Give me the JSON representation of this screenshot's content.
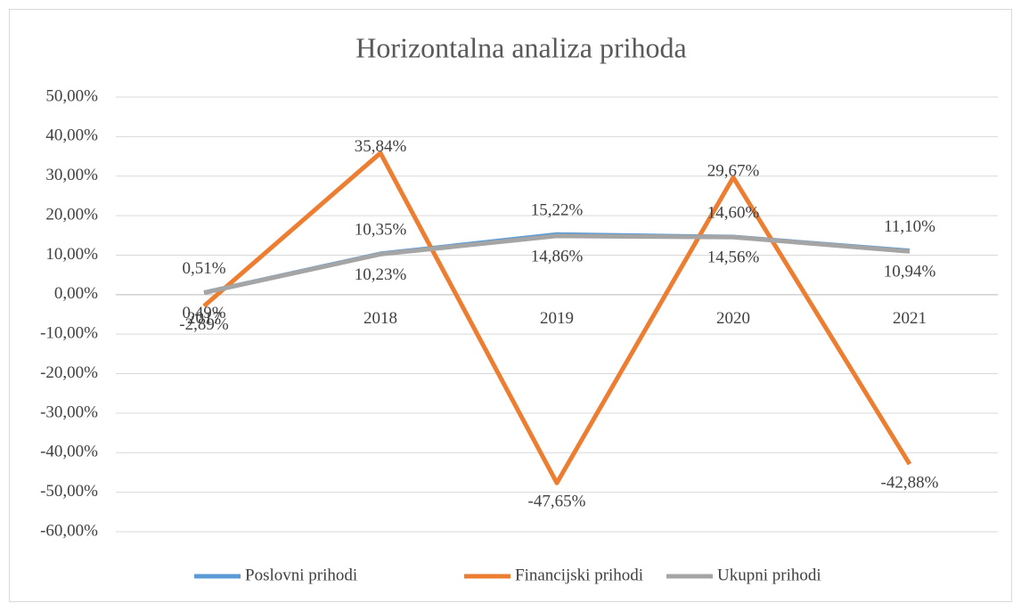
{
  "chart_data": {
    "type": "line",
    "title": "Horizontalna analiza prihoda",
    "categories": [
      "2017",
      "2018",
      "2019",
      "2020",
      "2021"
    ],
    "series": [
      {
        "name": "Poslovni prihodi",
        "color": "#5b9bd5",
        "values": [
          0.51,
          10.35,
          15.22,
          14.6,
          11.1
        ],
        "value_labels": [
          "0,51%",
          "10,35%",
          "15,22%",
          "14,60%",
          "11,10%"
        ]
      },
      {
        "name": "Financijski prihodi",
        "color": "#ed7d31",
        "values": [
          -2.89,
          35.84,
          -47.65,
          29.67,
          -42.88
        ],
        "value_labels": [
          "-2,89%",
          "35,84%",
          "-47,65%",
          "29,67%",
          "-42,88%"
        ]
      },
      {
        "name": "Ukupni prihodi",
        "color": "#a5a5a5",
        "values": [
          0.49,
          10.23,
          14.86,
          14.56,
          10.94
        ],
        "value_labels": [
          "0,49%",
          "10,23%",
          "14,86%",
          "14,56%",
          "10,94%"
        ]
      }
    ],
    "ylim": [
      -60,
      50
    ],
    "yticks": [
      {
        "value": -60,
        "label": "-60,00%"
      },
      {
        "value": -50,
        "label": "-50,00%"
      },
      {
        "value": -40,
        "label": "-40,00%"
      },
      {
        "value": -30,
        "label": "-30,00%"
      },
      {
        "value": -20,
        "label": "-20,00%"
      },
      {
        "value": -10,
        "label": "-10,00%"
      },
      {
        "value": 0,
        "label": "0,00%"
      },
      {
        "value": 10,
        "label": "10,00%"
      },
      {
        "value": 20,
        "label": "20,00%"
      },
      {
        "value": 30,
        "label": "30,00%"
      },
      {
        "value": 40,
        "label": "40,00%"
      },
      {
        "value": 50,
        "label": "50,00%"
      }
    ],
    "grid": true,
    "legend": "bottom"
  }
}
